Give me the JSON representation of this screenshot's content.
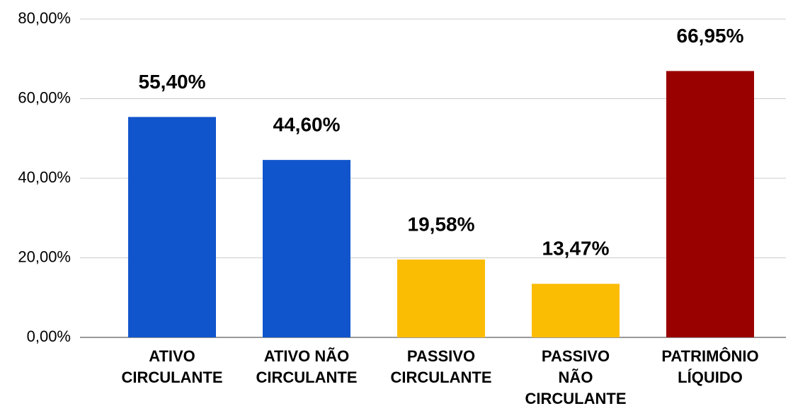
{
  "chart_data": {
    "type": "bar",
    "categories": [
      [
        "ATIVO",
        "CIRCULANTE"
      ],
      [
        "ATIVO NÃO",
        "CIRCULANTE"
      ],
      [
        "PASSIVO",
        "CIRCULANTE"
      ],
      [
        "PASSIVO",
        "NÃO",
        "CIRCULANTE"
      ],
      [
        "PATRIMÔNIO",
        "LÍQUIDO"
      ]
    ],
    "values": [
      55.4,
      44.6,
      19.58,
      13.47,
      66.95
    ],
    "value_labels": [
      "55,40%",
      "44,60%",
      "19,58%",
      "13,47%",
      "66,95%"
    ],
    "colors": [
      "#1155cc",
      "#1155cc",
      "#fbbc04",
      "#fbbc04",
      "#990000"
    ],
    "ylim": [
      0,
      80
    ],
    "yticks": [
      {
        "value": 0,
        "label": "0,00%"
      },
      {
        "value": 20,
        "label": "20,00%"
      },
      {
        "value": 40,
        "label": "40,00%"
      },
      {
        "value": 60,
        "label": "60,00%"
      },
      {
        "value": 80,
        "label": "80,00%"
      }
    ],
    "grid": true
  }
}
